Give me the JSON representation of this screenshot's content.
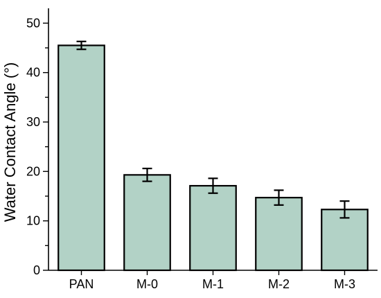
{
  "chart_data": {
    "type": "bar",
    "categories": [
      "PAN",
      "M-0",
      "M-1",
      "M-2",
      "M-3"
    ],
    "values": [
      45.5,
      19.3,
      17.1,
      14.7,
      12.3
    ],
    "errors": [
      0.8,
      1.3,
      1.5,
      1.5,
      1.7
    ],
    "title": "",
    "xlabel": "",
    "ylabel": "Water Contact Angle (°)",
    "ylim": [
      0,
      53
    ],
    "yticks": [
      0,
      10,
      20,
      30,
      40,
      50
    ],
    "ytick_labels": [
      "0",
      "10",
      "20",
      "30",
      "40",
      "50"
    ],
    "grid": false,
    "legend": "none",
    "colors": {
      "bar_fill": "#b2d2c6",
      "bar_edge": "#000000",
      "axis": "#000000"
    }
  }
}
